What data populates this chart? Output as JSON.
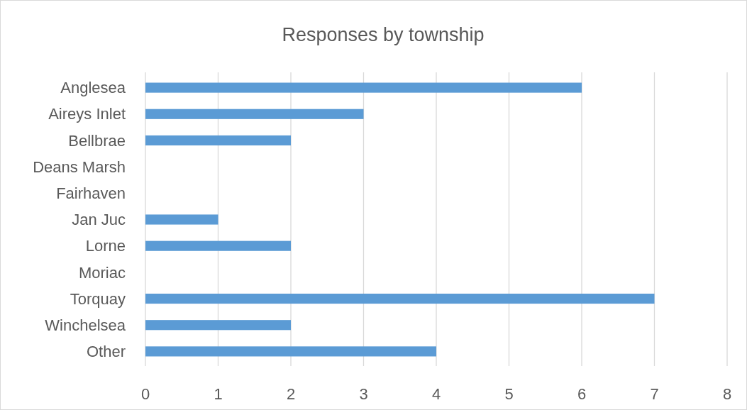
{
  "chart_data": {
    "type": "bar",
    "orientation": "horizontal",
    "title": "Responses by township",
    "categories": [
      "Anglesea",
      "Aireys Inlet",
      "Bellbrae",
      "Deans Marsh",
      "Fairhaven",
      "Jan Juc",
      "Lorne",
      "Moriac",
      "Torquay",
      "Winchelsea",
      "Other"
    ],
    "values": [
      6,
      3,
      2,
      0,
      0,
      1,
      2,
      0,
      7,
      2,
      4
    ],
    "color": "#5b9bd5",
    "xlim": [
      0,
      8
    ],
    "xticks": [
      0,
      1,
      2,
      3,
      4,
      5,
      6,
      7,
      8
    ],
    "grid": "x"
  }
}
